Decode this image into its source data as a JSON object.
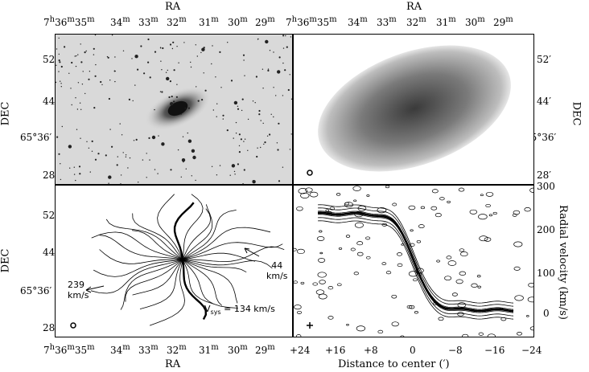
{
  "figure": {
    "top_axis_label_left": "RA",
    "top_axis_label_right": "RA",
    "bottom_axis_label_left": "RA",
    "bottom_axis_label_right": "Distance to center (′)",
    "left_axis_label_top": "DEC",
    "left_axis_label_bottom": "DEC",
    "right_axis_label_top": "DEC",
    "right_axis_label_bottom": "Radial velocity (km/s)",
    "ra_ticks": [
      {
        "h": "7",
        "hs": "h",
        "m": "36",
        "ms": "m",
        "s": "35",
        "ss": "m"
      },
      {
        "m": "34",
        "ms": "m"
      },
      {
        "m": "33",
        "ms": "m"
      },
      {
        "m": "32",
        "ms": "m"
      },
      {
        "m": "31",
        "ms": "m"
      },
      {
        "m": "30",
        "ms": "m"
      },
      {
        "m": "29",
        "ms": "m"
      }
    ],
    "dec_ticks": [
      "52′",
      "44′",
      "65°36′",
      "28′"
    ],
    "distance_ticks": [
      "+24",
      "+16",
      "+8",
      "0",
      "−8",
      "−16",
      "−24"
    ],
    "velocity_ticks": [
      "300",
      "200",
      "100",
      "0"
    ],
    "annotations": {
      "left_arrow_value": "239",
      "left_arrow_unit": "km/s",
      "right_arrow_value": "44",
      "right_arrow_unit": "km/s",
      "vsys_prefix": "V",
      "vsys_subscript": "sys",
      "vsys_value": " = 134 km/s"
    }
  },
  "colors": {
    "background": "#ffffff",
    "ink": "#000000",
    "optical_sky": "#d9d9d9",
    "hi_gray": "#6e6e6e"
  }
}
